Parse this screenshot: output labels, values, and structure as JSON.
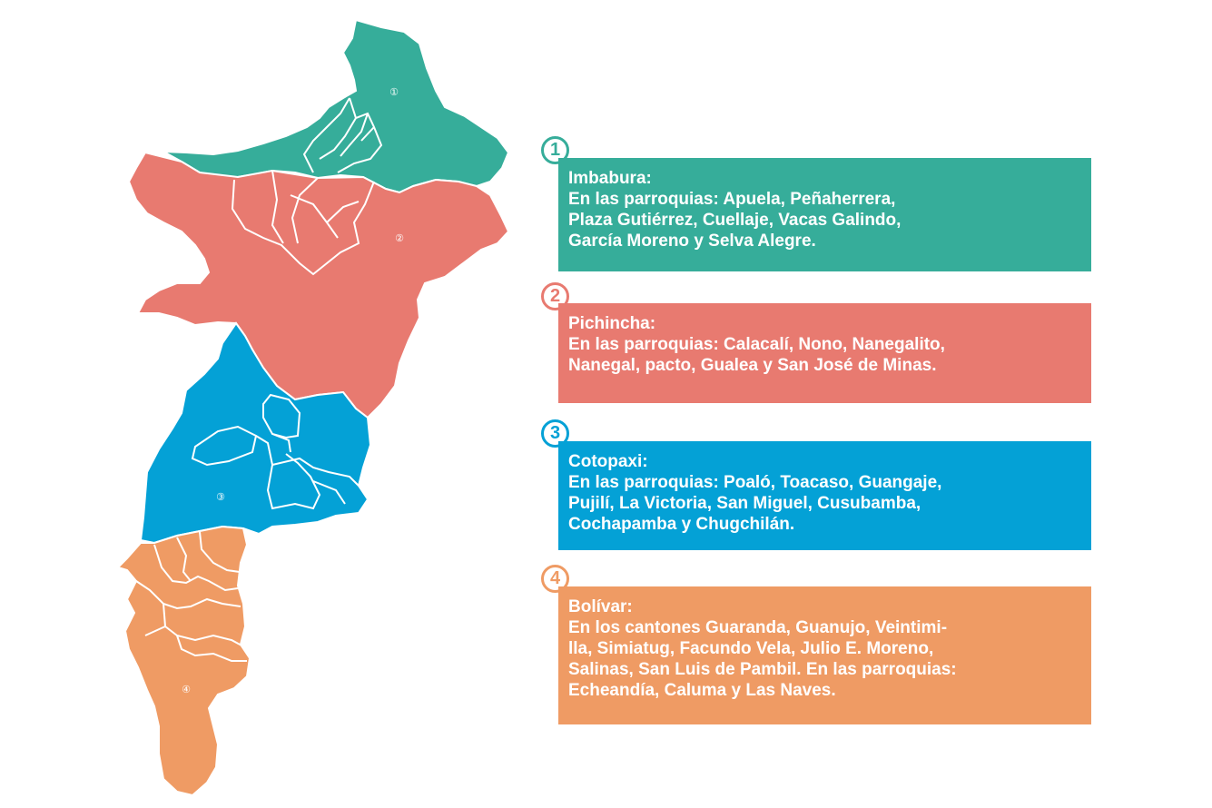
{
  "colors": {
    "imbabura": "#36ad9a",
    "pichincha": "#e87a70",
    "cotopaxi": "#04a1d6",
    "bolivar": "#ef9b64",
    "border": "#ffffff"
  },
  "map": {
    "regions": [
      {
        "id": "imbabura",
        "number": "1"
      },
      {
        "id": "pichincha",
        "number": "2"
      },
      {
        "id": "cotopaxi",
        "number": "3"
      },
      {
        "id": "bolivar",
        "number": "4"
      }
    ]
  },
  "legend": [
    {
      "number": "1",
      "title": "Imbabura:",
      "desc": "En las parroquias: Apuela, Peñaherrera,\nPlaza Gutiérrez, Cuellaje, Vacas Galindo,\nGarcía Moreno y Selva Alegre."
    },
    {
      "number": "2",
      "title": "Pichincha:",
      "desc": "En las parroquias: Calacalí, Nono, Nanegalito,\nNanegal, pacto, Gualea y San José de Minas."
    },
    {
      "number": "3",
      "title": "Cotopaxi:",
      "desc": "En las parroquias: Poaló, Toacaso, Guangaje,\nPujilí, La Victoria, San Miguel, Cusubamba,\nCochapamba y Chugchilán."
    },
    {
      "number": "4",
      "title": "Bolívar:",
      "desc": "En los cantones Guaranda, Guanujo, Veintimi-\nlla, Simiatug, Facundo Vela, Julio E. Moreno,\nSalinas, San Luis de Pambil. En las parroquias:\nEcheandía, Caluma y Las Naves."
    }
  ]
}
